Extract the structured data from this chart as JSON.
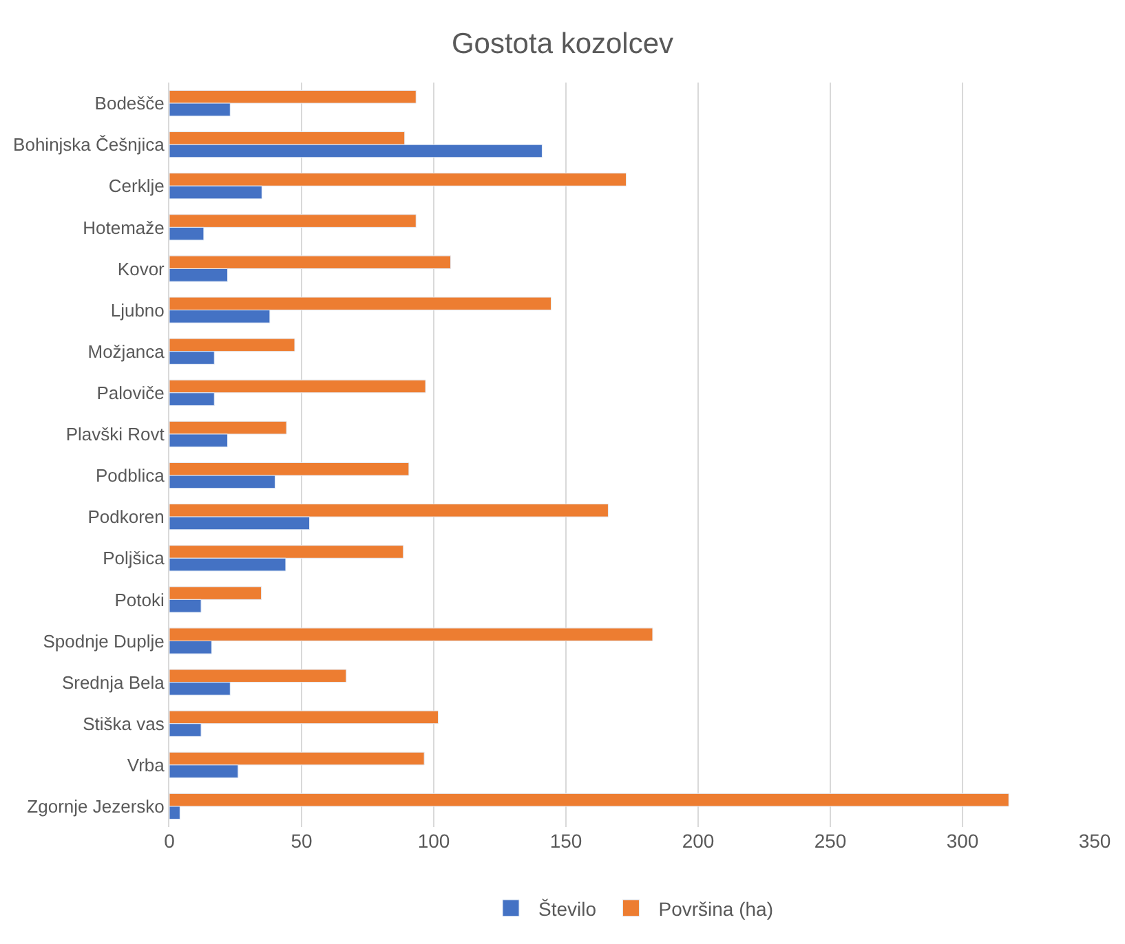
{
  "chart_data": {
    "type": "bar",
    "orientation": "horizontal",
    "title": "Gostota kozolcev",
    "categories": [
      "Bodešče",
      "Bohinjska Češnjica",
      "Cerklje",
      "Hotemaže",
      "Kovor",
      "Ljubno",
      "Možjanca",
      "Paloviče",
      "Plavški Rovt",
      "Podblica",
      "Podkoren",
      "Poljšica",
      "Potoki",
      "Spodnje Duplje",
      "Srednja Bela",
      "Stiška vas",
      "Vrba",
      "Zgornje Jezersko"
    ],
    "series": [
      {
        "name": "Število",
        "color": "#4472c4",
        "values": [
          23,
          141,
          35,
          13,
          22,
          38,
          17,
          17,
          22,
          40,
          53,
          44,
          12,
          16,
          23,
          12,
          26,
          4
        ]
      },
      {
        "name": "Površina (ha)",
        "color": "#ed7d31",
        "values": [
          93.3,
          89,
          172.8,
          93.3,
          106.4,
          144.4,
          47.4,
          96.9,
          44.3,
          90.6,
          166,
          88.5,
          34.8,
          182.8,
          66.9,
          101.7,
          96.4,
          317.5
        ]
      }
    ],
    "xlim": [
      0,
      350
    ],
    "xticks": [
      0,
      50,
      100,
      150,
      200,
      250,
      300,
      350
    ],
    "grid": "x",
    "legend": "bottom"
  }
}
